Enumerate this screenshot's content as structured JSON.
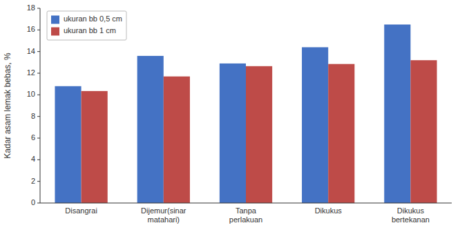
{
  "chart_data": {
    "type": "bar",
    "categories": [
      "Disangrai",
      "Dijemur(sinar\nmatahari)",
      "Tanpa\nperlakuan",
      "Dikukus",
      "Dikukus\nbertekanan"
    ],
    "series": [
      {
        "name": "ukuran bb 0,5 cm",
        "color": "#4472C4",
        "values": [
          10.8,
          13.6,
          12.9,
          14.4,
          16.5
        ]
      },
      {
        "name": "ukuran bb 1 cm",
        "color": "#BE4B48",
        "values": [
          10.35,
          11.7,
          12.65,
          12.85,
          13.2
        ]
      }
    ],
    "ylabel": "Kadar asam lemak bebas, %",
    "ylim": [
      0,
      18
    ],
    "yticks": [
      0,
      2,
      4,
      6,
      8,
      10,
      12,
      14,
      16,
      18
    ],
    "legend": "upper left",
    "grid": false
  }
}
